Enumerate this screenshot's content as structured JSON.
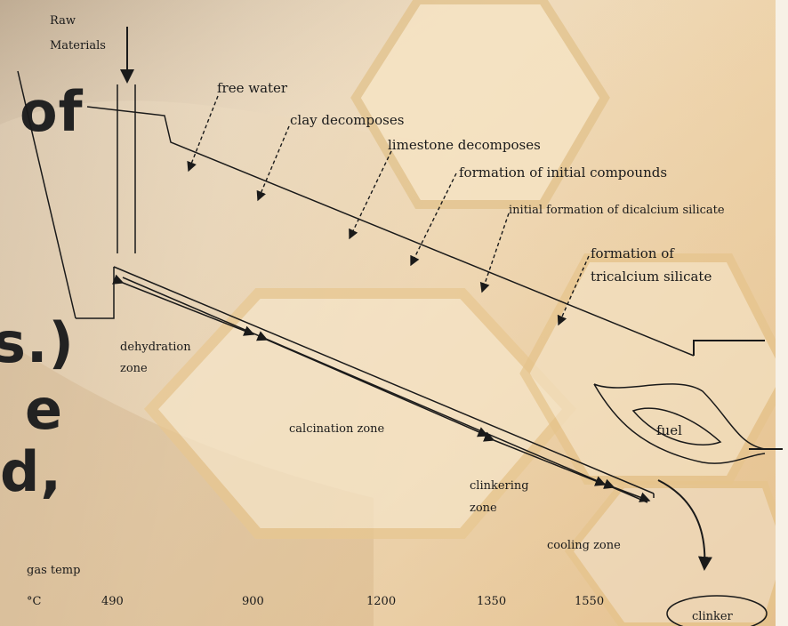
{
  "background_text": {
    "line1": "of",
    "line2": "s.)",
    "line3": "e",
    "line4": "d,"
  },
  "labels": {
    "raw_materials_1": "Raw",
    "raw_materials_2": "Materials",
    "free_water": "free water",
    "clay_decomposes": "clay decomposes",
    "limestone_decomposes": "limestone decomposes",
    "initial_compounds": "formation of initial compounds",
    "initial_dicalcium": "initial formation of dicalcium silicate",
    "tricalcium_1": "formation of",
    "tricalcium_2": "tricalcium silicate",
    "dehydration_1": "dehydration",
    "dehydration_2": "zone",
    "calcination": "calcination zone",
    "clinkering_1": "clinkering",
    "clinkering_2": "zone",
    "cooling": "cooling zone",
    "fuel": "fuel",
    "clinker": "clinker",
    "gas_temp": "gas temp",
    "unit": "°C"
  },
  "temperature_scale": [
    "490",
    "900",
    "1200",
    "1350",
    "1550"
  ],
  "colors": {
    "line": "#1a1a1a",
    "text": "#222222",
    "hex_fill": "#f6e4c4"
  }
}
